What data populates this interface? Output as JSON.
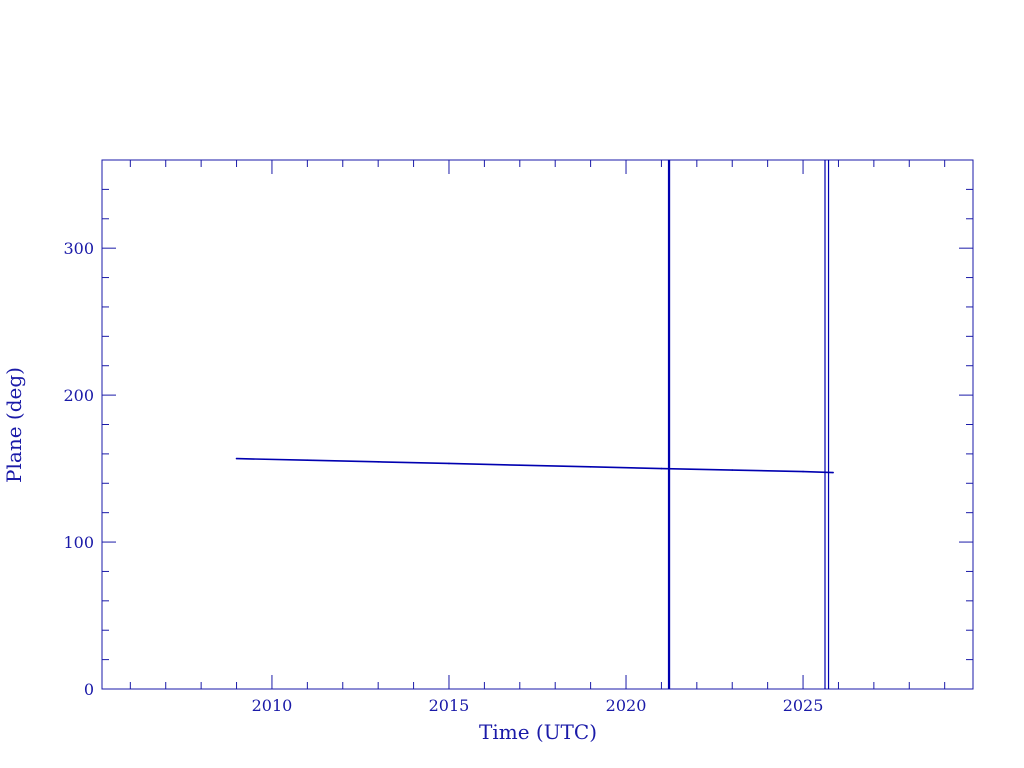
{
  "chart_data": {
    "type": "line",
    "title": "",
    "xlabel": "Time (UTC)",
    "ylabel": "Plane (deg)",
    "xlim": [
      2005.2,
      2029.8
    ],
    "ylim": [
      0,
      360
    ],
    "x_ticks": [
      2010,
      2015,
      2020,
      2025
    ],
    "y_ticks": [
      0,
      100,
      200,
      300
    ],
    "x_minor_step": 1,
    "y_minor_step": 20,
    "grid": false,
    "color": "#0000b0",
    "series": [
      {
        "x": [
          2009.0,
          2011.0,
          2013.0,
          2015.0,
          2017.0,
          2019.0,
          2021.0,
          2023.0,
          2025.0,
          2025.85
        ],
        "y": [
          156.8,
          155.7,
          154.6,
          153.5,
          152.3,
          151.2,
          150.0,
          149.0,
          148.0,
          147.3
        ]
      }
    ],
    "vertical_lines": [
      2021.2,
      2021.23,
      2025.62,
      2025.72
    ]
  }
}
